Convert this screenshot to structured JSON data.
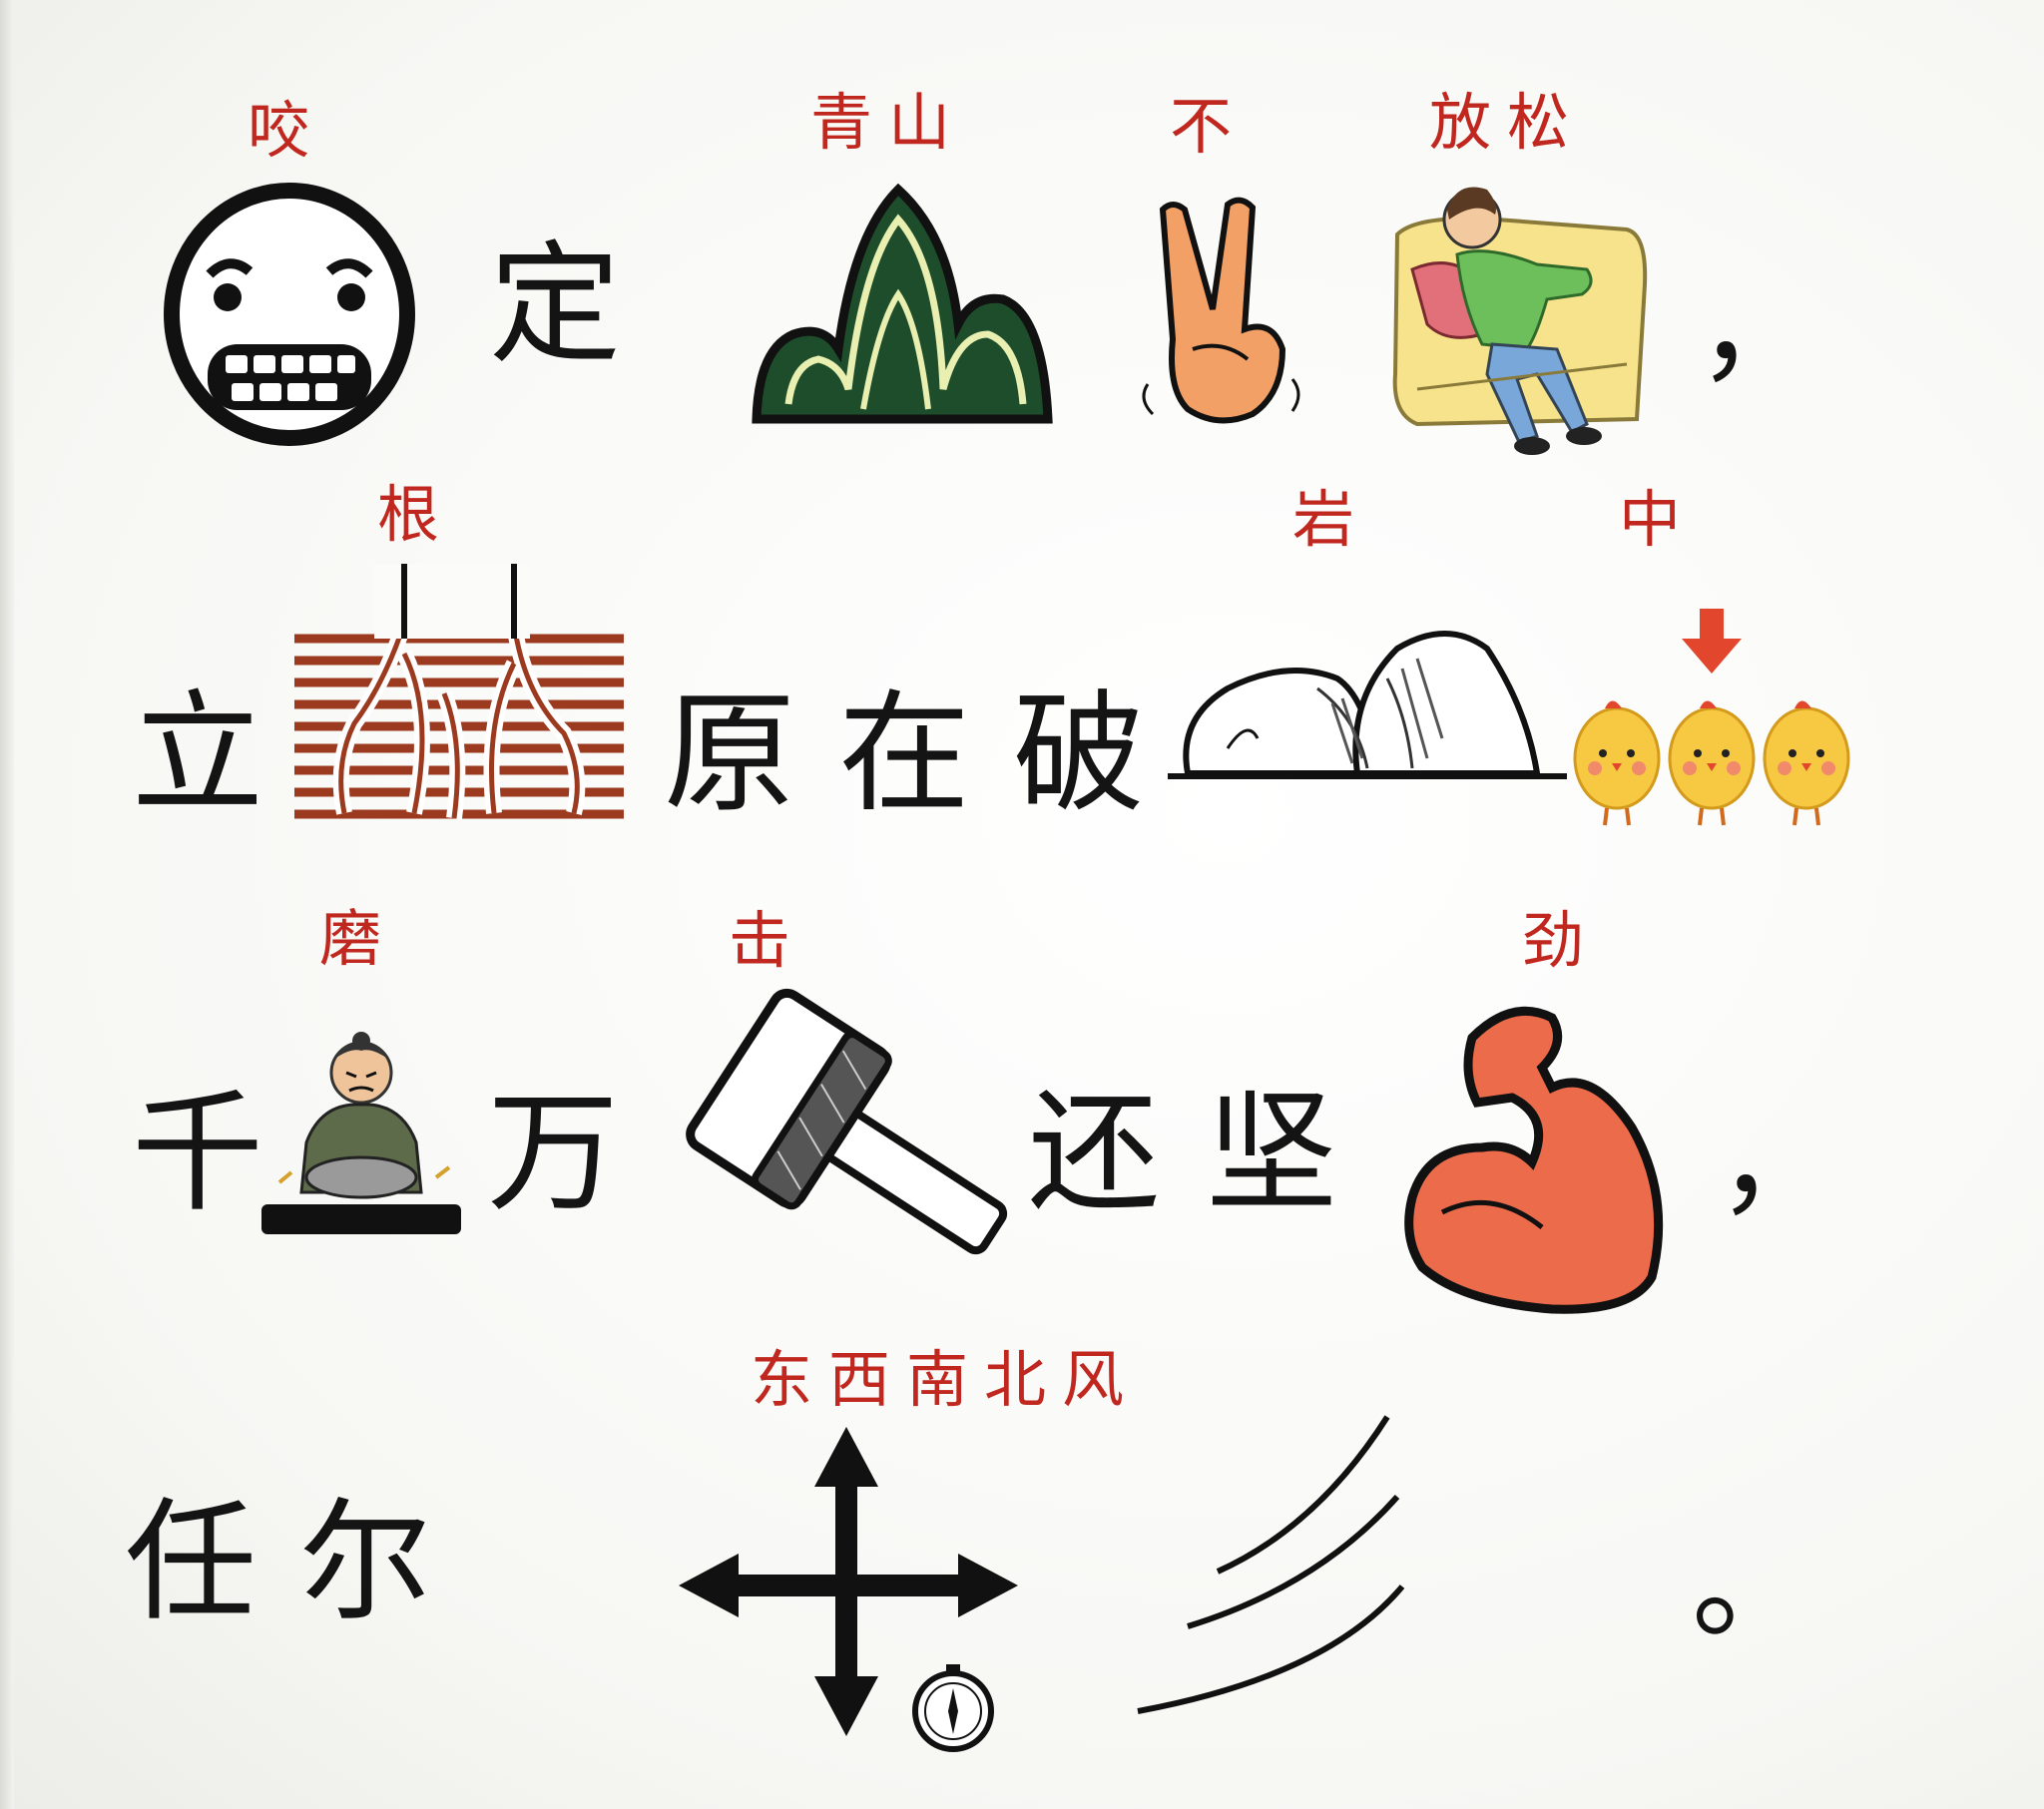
{
  "row1": {
    "face_caption": "咬",
    "text1": "定",
    "mountain_caption": "青山",
    "hand_caption": "不",
    "relax_caption": "放松",
    "comma": "，"
  },
  "row2": {
    "text1": "立",
    "roots_caption": "根",
    "text2": "原",
    "text3": "在",
    "text4": "破",
    "rocks_caption": "岩",
    "chicks_caption": "中"
  },
  "row3": {
    "text1": "千",
    "grind_caption": "磨",
    "text2": "万",
    "hammer_caption": "击",
    "text3": "还",
    "text4": "坚",
    "muscle_caption": "劲",
    "comma": "，"
  },
  "row4": {
    "text1": "任",
    "text2": "尔",
    "compass_caption": "东西南北风",
    "period": "。"
  },
  "icons": [
    "clenched-teeth-face-icon",
    "green-mountain-icon",
    "two-fingers-hand-icon",
    "relaxing-man-icon",
    "roots-icon",
    "rocks-icon",
    "chicks-arrow-icon",
    "grinding-man-icon",
    "hammer-icon",
    "flexed-arm-icon",
    "compass-arrows-icon",
    "wind-lines-icon"
  ],
  "colors": {
    "caption": "#c0271e",
    "text": "#141414"
  }
}
